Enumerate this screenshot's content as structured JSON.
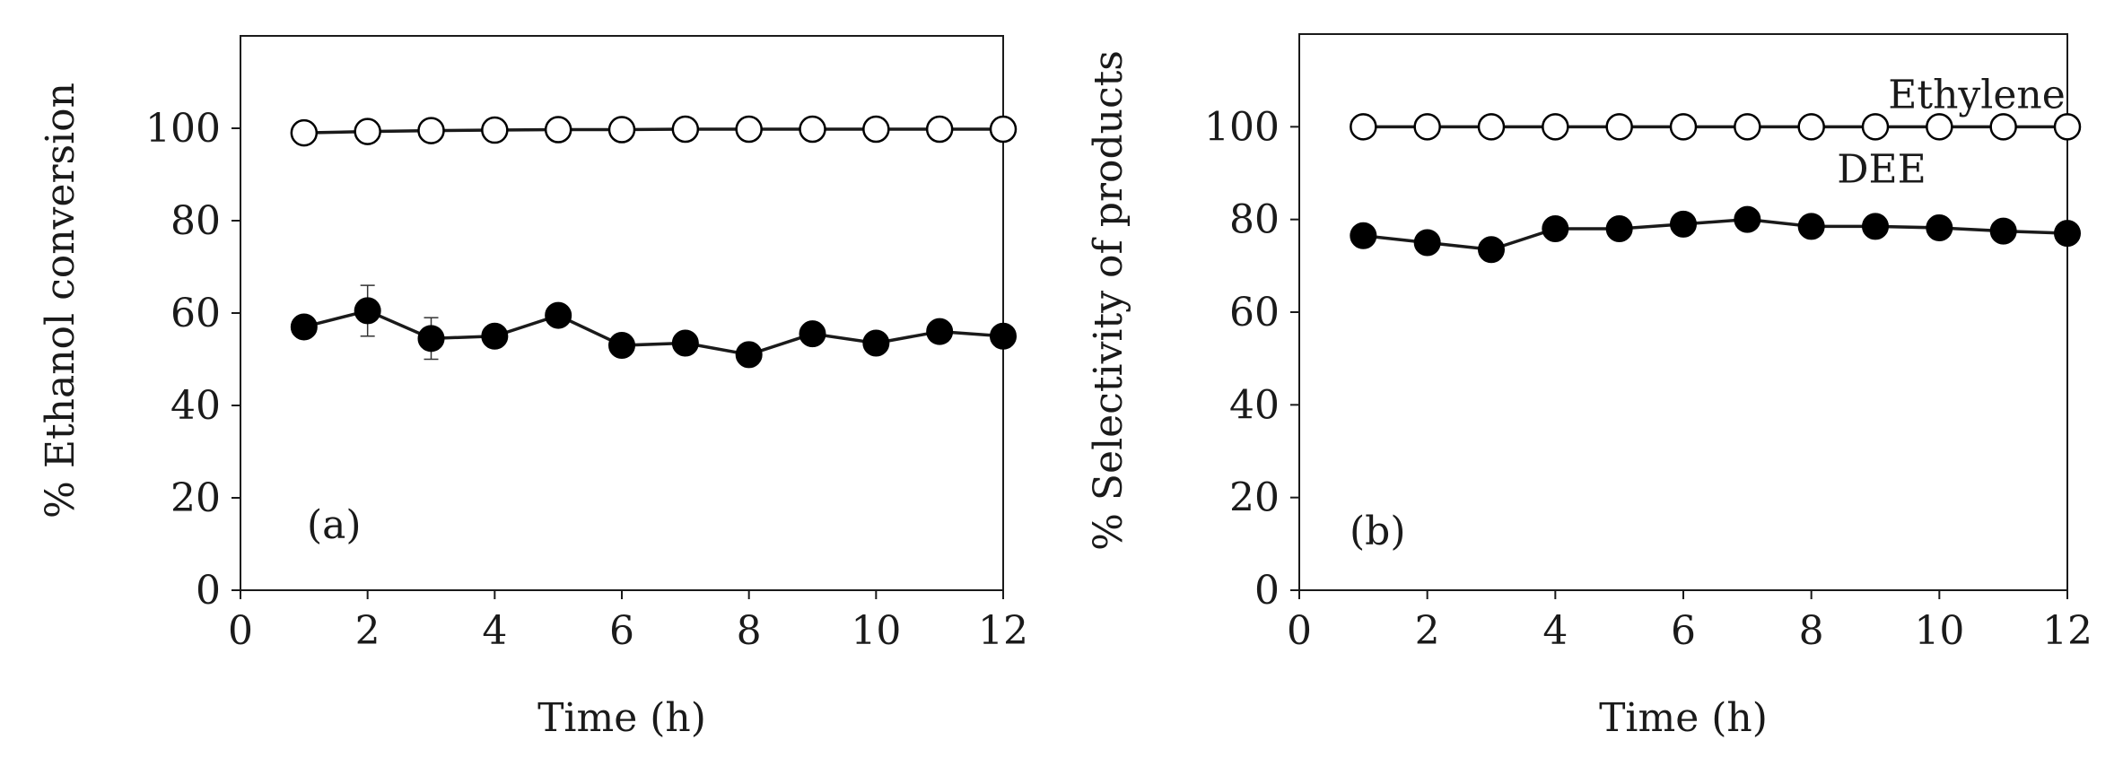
{
  "chart_data": [
    {
      "type": "line",
      "panel_label": "(a)",
      "xlabel": "Time (h)",
      "ylabel": "% Ethanol conversion",
      "xlim": [
        0,
        12
      ],
      "ylim": [
        0,
        120
      ],
      "xticks": [
        0,
        2,
        4,
        6,
        8,
        10,
        12
      ],
      "yticks": [
        0,
        20,
        40,
        60,
        80,
        100
      ],
      "grid": false,
      "x": [
        1,
        2,
        3,
        4,
        5,
        6,
        7,
        8,
        9,
        10,
        11,
        12
      ],
      "series": [
        {
          "marker": "open-circle",
          "values": [
            99,
            99.3,
            99.5,
            99.6,
            99.7,
            99.7,
            99.8,
            99.8,
            99.8,
            99.8,
            99.8,
            99.8
          ],
          "error": null
        },
        {
          "marker": "filled-circle",
          "values": [
            57,
            60.5,
            54.5,
            55,
            59.5,
            53,
            53.5,
            51,
            55.5,
            53.5,
            56,
            55
          ],
          "error": [
            1.5,
            5.5,
            4.5,
            2,
            1.5,
            1.5,
            1.5,
            1.5,
            2,
            1.5,
            1.5,
            1
          ]
        }
      ],
      "annotations": []
    },
    {
      "type": "line",
      "panel_label": "(b)",
      "xlabel": "Time (h)",
      "ylabel": "% Selectivity of products",
      "xlim": [
        0,
        12
      ],
      "ylim": [
        0,
        120
      ],
      "xticks": [
        0,
        2,
        4,
        6,
        8,
        10,
        12
      ],
      "yticks": [
        0,
        20,
        40,
        60,
        80,
        100
      ],
      "grid": false,
      "x": [
        1,
        2,
        3,
        4,
        5,
        6,
        7,
        8,
        9,
        10,
        11,
        12
      ],
      "series": [
        {
          "name": "Ethylene",
          "marker": "open-circle",
          "values": [
            100,
            100,
            100,
            100,
            100,
            100,
            100,
            100,
            100,
            100,
            100,
            100
          ],
          "error": null
        },
        {
          "name": "DEE",
          "marker": "filled-circle",
          "values": [
            76.5,
            75,
            73.5,
            78,
            78,
            79,
            80,
            78.5,
            78.5,
            78.2,
            77.5,
            77
          ],
          "error": null
        }
      ],
      "annotations": [
        {
          "text": "Ethylene",
          "x": 9.2,
          "y": 104
        },
        {
          "text": "DEE",
          "x": 8.4,
          "y": 88
        }
      ]
    }
  ]
}
